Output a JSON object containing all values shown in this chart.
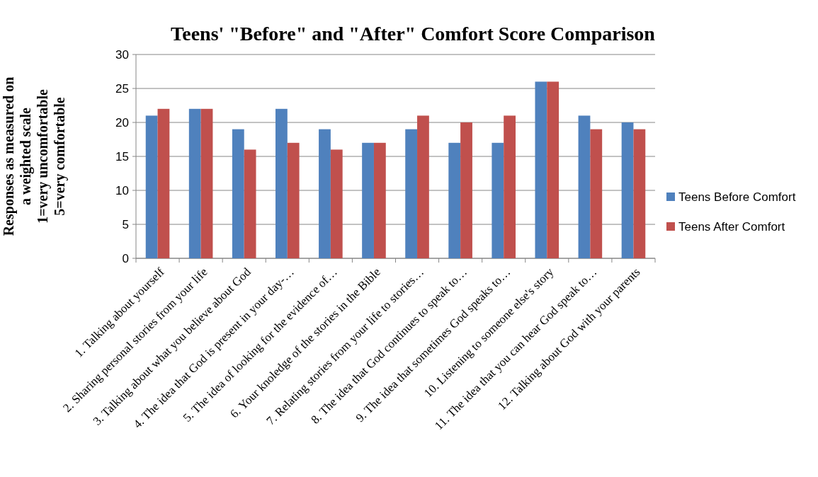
{
  "chart_data": {
    "type": "bar",
    "title": "Teens' \"Before\" and \"After\" Comfort Score Comparison",
    "ylabel": "Responses as measured on\na weighted scale\n1=very uncomfortable\n5=very comfortable",
    "categories": [
      "1. Talking about yourself",
      "2. Sharing personal stories from your life",
      "3. Talking about what you believe about God",
      "4. The idea that God is present in your day-…",
      "5. The idea of looking for the evidence of…",
      "6. Your knoledge of the stories in the Bible",
      "7. Relating stories from your life to stories…",
      "8. The idea that God continues to speak to…",
      "9. The idea that sometimes God speaks to…",
      "10. Listening to someone else's story",
      "11. The idea that you can hear God speak to…",
      "12. Talking about God with your parents"
    ],
    "series": [
      {
        "name": "Teens Before Comfort",
        "color": "#4f81bd",
        "values": [
          21,
          22,
          19,
          22,
          19,
          17,
          19,
          17,
          17,
          26,
          21,
          20
        ]
      },
      {
        "name": "Teens After Comfort",
        "color": "#c0504d",
        "values": [
          22,
          22,
          16,
          17,
          16,
          17,
          21,
          20,
          21,
          26,
          19,
          19
        ]
      }
    ],
    "ylim": [
      0,
      30
    ],
    "yticks": [
      0,
      5,
      10,
      15,
      20,
      25,
      30
    ],
    "grid": "y",
    "legend": "right"
  }
}
